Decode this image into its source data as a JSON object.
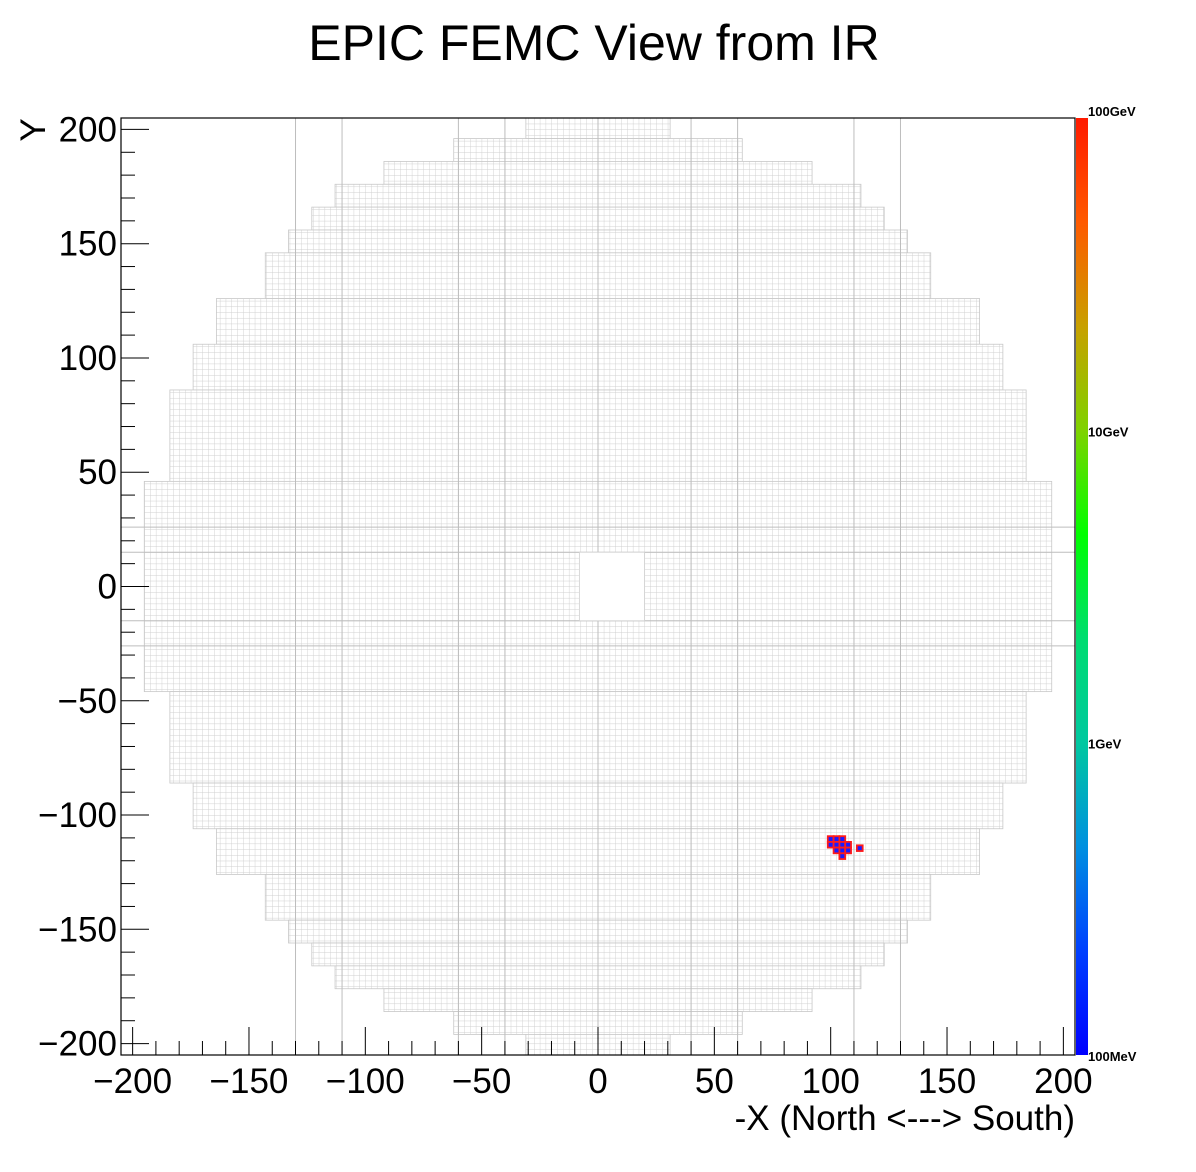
{
  "chart_data": {
    "type": "heatmap",
    "title": "EPIC FEMC View from IR",
    "xlabel": "-X (North <---> South)",
    "ylabel": "Y",
    "xlim": [
      -205,
      205
    ],
    "ylim": [
      -205,
      205
    ],
    "x_ticks": [
      -200,
      -150,
      -100,
      -50,
      0,
      50,
      100,
      150,
      200
    ],
    "y_ticks": [
      -200,
      -150,
      -100,
      -50,
      0,
      50,
      100,
      150,
      200
    ],
    "x_tick_labels": [
      "−200",
      "−150",
      "−100",
      "−50",
      "0",
      "50",
      "100",
      "150",
      "200"
    ],
    "y_tick_labels": [
      "−200",
      "−150",
      "−100",
      "−50",
      "0",
      "50",
      "100",
      "150",
      "200"
    ],
    "cell_size": 2.5,
    "beam_hole": {
      "x": [
        -8,
        20
      ],
      "y": [
        -15,
        15
      ]
    },
    "detector_rows": [
      {
        "y": [
          196,
          206
        ],
        "x": [
          -31,
          31
        ]
      },
      {
        "y": [
          186,
          196
        ],
        "x": [
          -62,
          62
        ]
      },
      {
        "y": [
          176,
          186
        ],
        "x": [
          -92,
          92
        ]
      },
      {
        "y": [
          166,
          176
        ],
        "x": [
          -113,
          113
        ]
      },
      {
        "y": [
          156,
          166
        ],
        "x": [
          -123,
          123
        ]
      },
      {
        "y": [
          146,
          156
        ],
        "x": [
          -133,
          133
        ]
      },
      {
        "y": [
          126,
          146
        ],
        "x": [
          -143,
          143
        ]
      },
      {
        "y": [
          106,
          126
        ],
        "x": [
          -164,
          164
        ]
      },
      {
        "y": [
          86,
          106
        ],
        "x": [
          -174,
          174
        ]
      },
      {
        "y": [
          46,
          86
        ],
        "x": [
          -184,
          184
        ]
      },
      {
        "y": [
          -46,
          46
        ],
        "x": [
          -195,
          195
        ]
      },
      {
        "y": [
          -86,
          -46
        ],
        "x": [
          -184,
          184
        ]
      },
      {
        "y": [
          -106,
          -86
        ],
        "x": [
          -174,
          174
        ]
      },
      {
        "y": [
          -126,
          -106
        ],
        "x": [
          -164,
          164
        ]
      },
      {
        "y": [
          -146,
          -126
        ],
        "x": [
          -143,
          143
        ]
      },
      {
        "y": [
          -156,
          -146
        ],
        "x": [
          -133,
          133
        ]
      },
      {
        "y": [
          -166,
          -156
        ],
        "x": [
          -123,
          123
        ]
      },
      {
        "y": [
          -176,
          -166
        ],
        "x": [
          -113,
          113
        ]
      },
      {
        "y": [
          -186,
          -176
        ],
        "x": [
          -92,
          92
        ]
      },
      {
        "y": [
          -196,
          -186
        ],
        "x": [
          -62,
          62
        ]
      },
      {
        "y": [
          -206,
          -196
        ],
        "x": [
          -31,
          31
        ]
      }
    ],
    "hits": [
      {
        "x": 100,
        "y": -110.5
      },
      {
        "x": 102.5,
        "y": -110.5
      },
      {
        "x": 105,
        "y": -110.5
      },
      {
        "x": 100,
        "y": -113
      },
      {
        "x": 102.5,
        "y": -113
      },
      {
        "x": 105,
        "y": -113
      },
      {
        "x": 107.5,
        "y": -113
      },
      {
        "x": 102.5,
        "y": -115.5
      },
      {
        "x": 105,
        "y": -115.5
      },
      {
        "x": 107.5,
        "y": -115.5
      },
      {
        "x": 112.5,
        "y": -114.5
      },
      {
        "x": 105,
        "y": -118
      }
    ],
    "colorbar": {
      "scale": "log",
      "labels": [
        "100GeV",
        "10GeV",
        "1GeV",
        "100MeV"
      ],
      "colors": [
        "#ff1a00",
        "#ff5a00",
        "#c8a000",
        "#7fd200",
        "#00ff00",
        "#00dd70",
        "#00c8a0",
        "#0090e0",
        "#0040ff",
        "#0000ff"
      ]
    },
    "hit_fill": "#1a1aff",
    "hit_edge": "#ff1a1a",
    "grid_color": "#cfcfcf"
  }
}
